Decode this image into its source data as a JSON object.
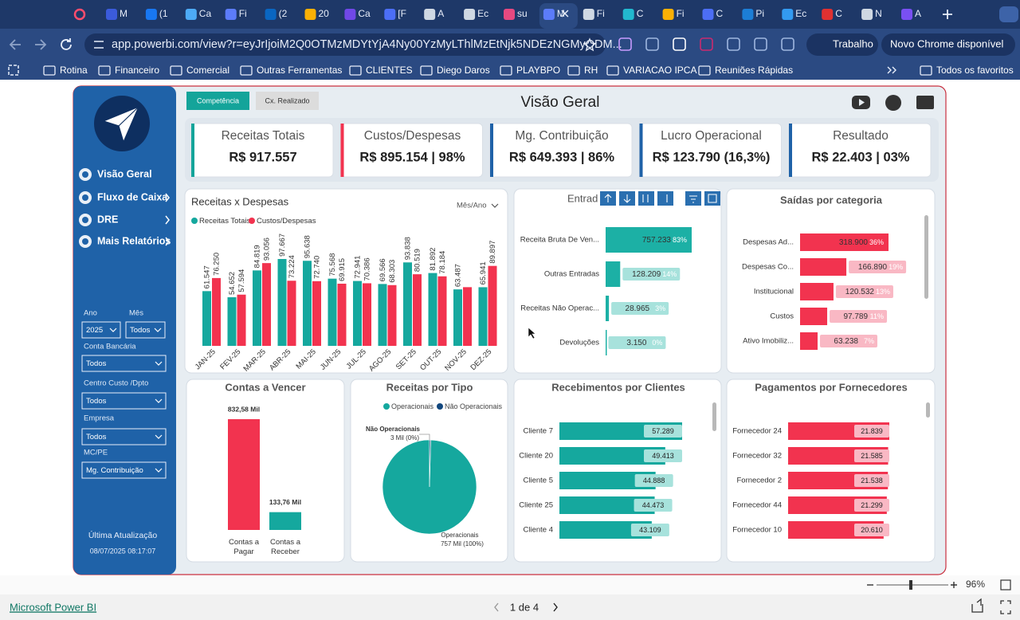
{
  "browser": {
    "tabs": [
      "M",
      "(1",
      "Ca",
      "Fi",
      "(2",
      "20",
      "Ca",
      "[F",
      "A",
      "Ec",
      "su",
      "M",
      "Fi",
      "C",
      "Fi",
      "C",
      "Pi",
      "Ec",
      "C",
      "N",
      "A"
    ],
    "url": "app.powerbi.com/view?r=eyJrIjoiM2Q0OTMzMDYtYjA4Ny00YzMyLThlMzEtNjk5NDEzNGMyODM...",
    "profile": "Trabalho",
    "update_notice": "Novo Chrome disponível",
    "bookmarks": [
      "Rotina",
      "Financeiro",
      "Comercial",
      "Outras Ferramentas",
      "CLIENTES",
      "Diego Daros",
      "PLAYBPO",
      "RH",
      "VARIACAO IPCA",
      "Reuniões Rápidas"
    ],
    "all_bookmarks": "Todos os favoritos"
  },
  "report": {
    "tabs": [
      "Competência",
      "Cx. Realizado"
    ],
    "title": "Visão Geral",
    "nav": [
      "Visão Geral",
      "Fluxo de Caixa",
      "DRE",
      "Mais Relatórios"
    ],
    "filters": [
      {
        "label": "Ano",
        "value": "2025"
      },
      {
        "label": "Mês",
        "value": "Todos"
      },
      {
        "label": "Conta Bancária",
        "value": "Todos"
      },
      {
        "label": "Centro Custo /Dpto",
        "value": "Todos"
      },
      {
        "label": "Empresa",
        "value": "Todos"
      },
      {
        "label": "MC/PE",
        "value": "Mg. Contribuição"
      }
    ],
    "last_update_label": "Última Atualização",
    "last_update": "08/07/2025 08:17:07",
    "kpis": [
      {
        "label": "Receitas Totais",
        "value": "R$ 917.557"
      },
      {
        "label": "Custos/Despesas",
        "value": "R$ 895.154 | 98%"
      },
      {
        "label": "Mg. Contribuição",
        "value": "R$ 649.393 | 86%"
      },
      {
        "label": "Lucro Operacional",
        "value": "R$ 123.790 (16,3%)"
      },
      {
        "label": "Resultado",
        "value": "R$ 22.403 | 03%"
      }
    ],
    "revenue_vs_expenses": {
      "type": "bar",
      "title": "Receitas x Despesas",
      "period_selector": "Mês/Ano",
      "categories": [
        "JAN-25",
        "FEV-25",
        "MAR-25",
        "ABR-25",
        "MAI-25",
        "JUN-25",
        "JUL-25",
        "AGO-25",
        "SET-25",
        "OUT-25",
        "NOV-25",
        "DEZ-25"
      ],
      "ylim": [
        0,
        100000
      ],
      "series": [
        {
          "name": "Receitas Totais",
          "color": "#15a89e",
          "values": [
            61547,
            54652,
            84819,
            97667,
            95638,
            75568,
            72941,
            69566,
            93838,
            81892,
            63487,
            65941
          ],
          "value_labels": [
            "61.547",
            "54.652",
            "84.819",
            "97.667",
            "95.638",
            "75.568",
            "72.941",
            "69.566",
            "93.838",
            "81.892",
            "63.487",
            "65.941"
          ]
        },
        {
          "name": "Custos/Despesas",
          "color": "#f2334f",
          "values": [
            76250,
            57594,
            93056,
            73224,
            72740,
            69915,
            70386,
            68303,
            80519,
            78184,
            66000,
            89897
          ],
          "value_labels": [
            "76.250",
            "57.594",
            "93.056",
            "73.224",
            "72.740",
            "69.915",
            "70.386",
            "68.303",
            "80.519",
            "78.184",
            null,
            "89.897"
          ]
        }
      ]
    },
    "inflows": {
      "type": "hbar",
      "title": "Entrad",
      "color": "#1cb0a5",
      "categories": [
        "Receita Bruta De Ven...",
        "Outras Entradas",
        "Receitas Não Operac...",
        "Devoluções"
      ],
      "values": [
        757233,
        128209,
        28965,
        3150
      ],
      "value_labels": [
        "757.233",
        "128.209",
        "28.965",
        "3.150"
      ],
      "shares": [
        83,
        14,
        3,
        0
      ],
      "share_labels": [
        "83%",
        "14%",
        "3%",
        "0%"
      ]
    },
    "outflows": {
      "type": "hbar",
      "title": "Saídas por categoria",
      "color": "#f2334f",
      "categories": [
        "Despesas Ad...",
        "Despesas Co...",
        "Institucional",
        "Custos",
        "Ativo Imobiliz..."
      ],
      "values": [
        318900,
        166890,
        120532,
        97789,
        63238
      ],
      "value_labels": [
        "318.900",
        "166.890",
        "120.532",
        "97.789",
        "63.238"
      ],
      "shares": [
        36,
        19,
        13,
        11,
        7
      ],
      "share_labels": [
        "36%",
        "19%",
        "13%",
        "11%",
        "7%"
      ]
    },
    "bills_due": {
      "type": "bar",
      "title": "Contas a Vencer",
      "categories": [
        "Contas a Pagar",
        "Contas a Receber"
      ],
      "colors": [
        "#f2334f",
        "#15a89e"
      ],
      "values": [
        832580,
        133760
      ],
      "value_labels": [
        "832,58 Mil",
        "133,76 Mil"
      ]
    },
    "revenue_by_type": {
      "type": "pie",
      "title": "Receitas por Tipo",
      "categories": [
        "Operacionais",
        "Não Operacionais"
      ],
      "colors": [
        "#15a89e",
        "#12477e"
      ],
      "values": [
        757000,
        3000
      ],
      "value_labels": [
        "757 Mil (100%)",
        "3 Mil (0%)"
      ]
    },
    "receipts_by_client": {
      "type": "hbar",
      "title": "Recebimentos por Clientes",
      "color": "#15a89e",
      "categories": [
        "Cliente 7",
        "Cliente 20",
        "Cliente 5",
        "Cliente 25",
        "Cliente 4"
      ],
      "values": [
        57289,
        49413,
        44888,
        44473,
        43109
      ],
      "value_labels": [
        "57.289",
        "49.413",
        "44.888",
        "44.473",
        "43.109"
      ]
    },
    "payments_by_supplier": {
      "type": "hbar",
      "title": "Pagamentos por Fornecedores",
      "color": "#f2334f",
      "categories": [
        "Fornecedor 24",
        "Fornecedor 32",
        "Fornecedor 2",
        "Fornecedor 44",
        "Fornecedor 10"
      ],
      "values": [
        21839,
        21585,
        21538,
        21299,
        20610
      ],
      "value_labels": [
        "21.839",
        "21.585",
        "21.538",
        "21.299",
        "20.610"
      ]
    }
  },
  "footer": {
    "brand": "Microsoft Power BI",
    "page": "1 de 4",
    "zoom": "96%"
  }
}
